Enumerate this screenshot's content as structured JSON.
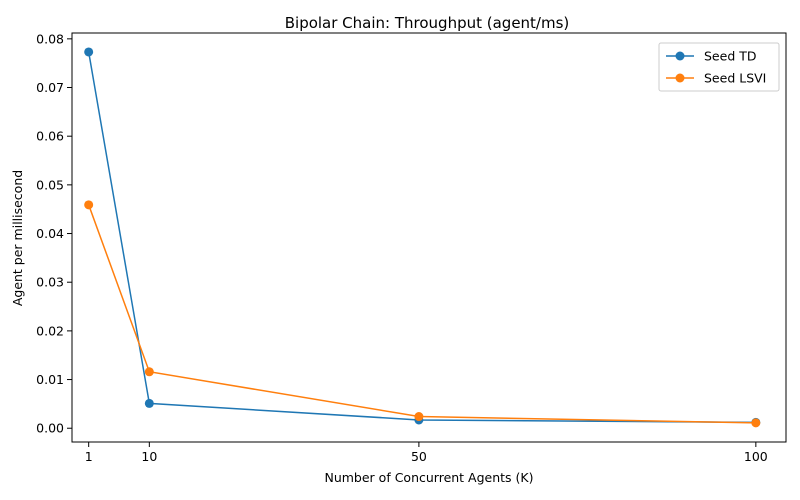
{
  "chart_data": {
    "type": "line",
    "title": "Bipolar Chain: Throughput (agent/ms)",
    "xlabel": "Number of Concurrent Agents (K)",
    "ylabel": "Agent per millisecond",
    "x": [
      1,
      10,
      50,
      100
    ],
    "xticks": [
      1,
      10,
      50,
      100
    ],
    "xlim": [
      -1.475,
      104.475
    ],
    "ylim": [
      -0.00283,
      0.0812
    ],
    "yticks": [
      0.0,
      0.01,
      0.02,
      0.03,
      0.04,
      0.05,
      0.06,
      0.07,
      0.08
    ],
    "ytick_labels": [
      "0.00",
      "0.01",
      "0.02",
      "0.03",
      "0.04",
      "0.05",
      "0.06",
      "0.07",
      "0.08"
    ],
    "grid": false,
    "legend": "top-right",
    "series": [
      {
        "name": "Seed TD",
        "color": "#1f77b4",
        "values": [
          0.0773,
          0.0051,
          0.0017,
          0.0012
        ]
      },
      {
        "name": "Seed LSVI",
        "color": "#ff7f0e",
        "values": [
          0.0459,
          0.0116,
          0.0024,
          0.0011
        ]
      }
    ]
  }
}
